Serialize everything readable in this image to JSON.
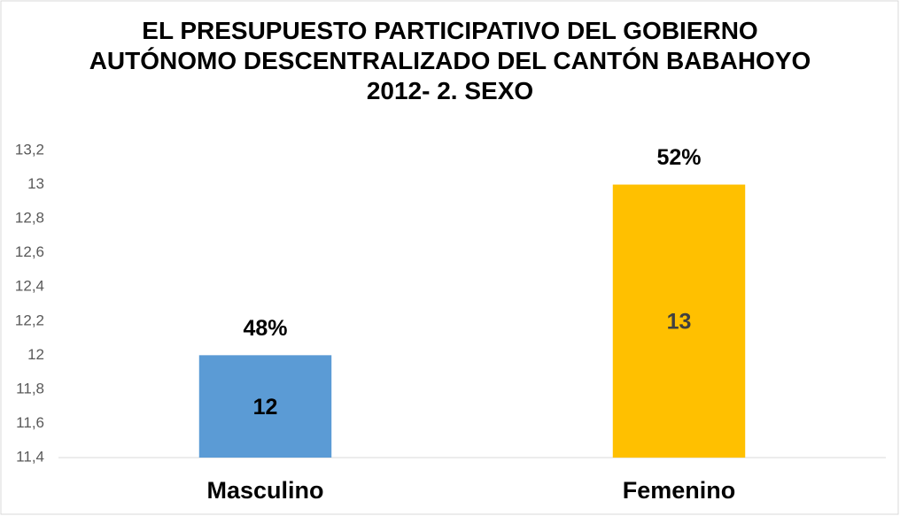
{
  "chart_data": {
    "type": "bar",
    "title": "EL PRESUPUESTO PARTICIPATIVO DEL GOBIERNO AUTÓNOMO DESCENTRALIZADO DEL CANTÓN BABAHOYO 2012- 2. SEXO",
    "categories": [
      "Masculino",
      "Femenino"
    ],
    "values": [
      12,
      13
    ],
    "colors": [
      "#5b9bd5",
      "#ffc000"
    ],
    "percentages": [
      {
        "value": 48,
        "label": "48%"
      },
      {
        "value": 52,
        "label": "52%"
      }
    ],
    "ylim": [
      11.4,
      13.2
    ],
    "yticks": [
      {
        "value": 11.4,
        "label": "11,4"
      },
      {
        "value": 11.6,
        "label": "11,6"
      },
      {
        "value": 11.8,
        "label": "11,8"
      },
      12,
      {
        "value": 12.2,
        "label": "12,2"
      },
      {
        "value": 12.4,
        "label": "12,4"
      },
      {
        "value": 12.6,
        "label": "12,6"
      },
      {
        "value": 12.8,
        "label": "12,8"
      },
      13,
      {
        "value": 13.2,
        "label": "13,2"
      }
    ],
    "grid": false
  }
}
